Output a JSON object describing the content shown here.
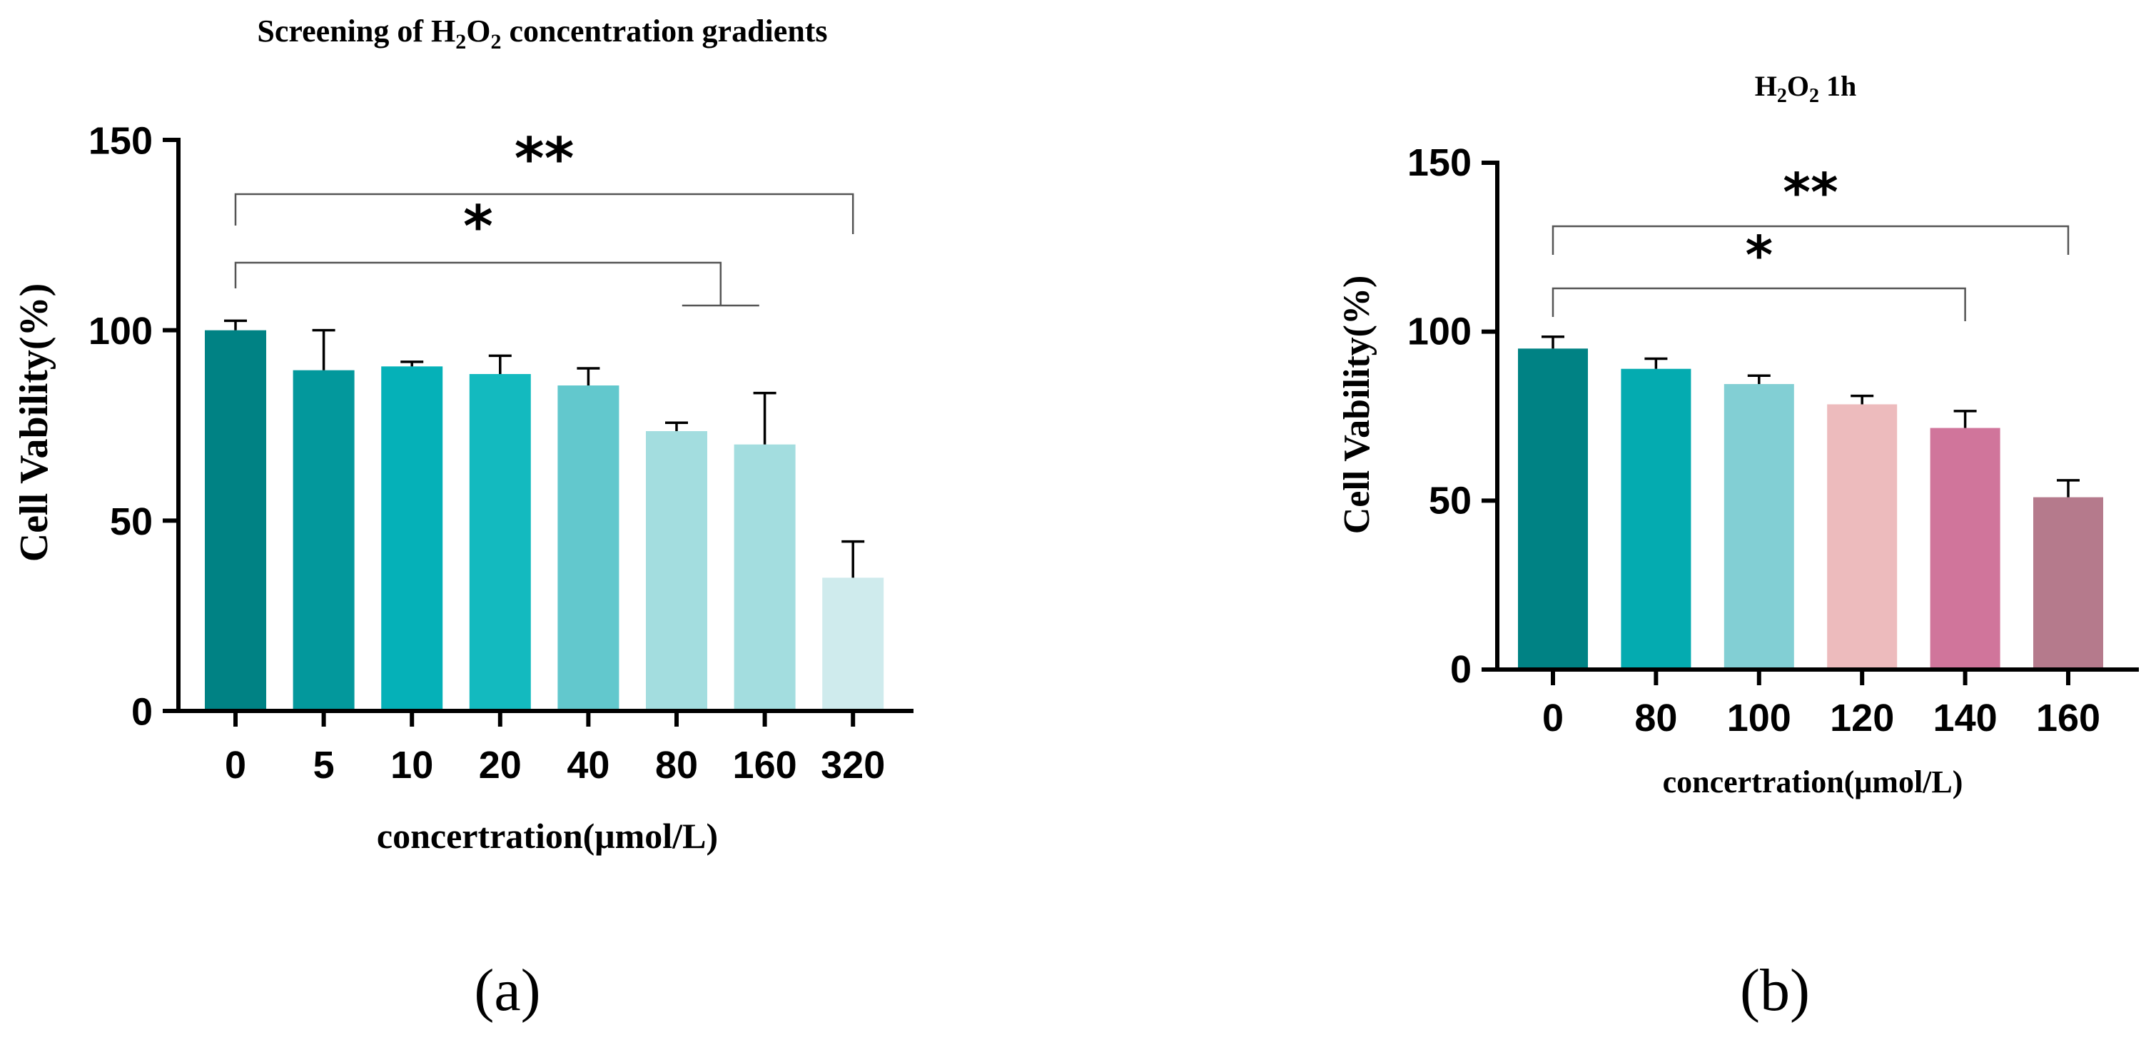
{
  "chart_data": [
    {
      "type": "bar",
      "panel": "(a)",
      "title": "Screening of H2O2 concentration gradients",
      "xlabel": "concertration(μmol/L)",
      "ylabel": "Cell Vability(%)",
      "categories": [
        "0",
        "5",
        "10",
        "20",
        "40",
        "80",
        "160",
        "320"
      ],
      "values": [
        100,
        89.5,
        90.5,
        88.5,
        85.5,
        73.5,
        70,
        35
      ],
      "errors": [
        2.5,
        10.5,
        1.2,
        4.8,
        4.5,
        2.2,
        13.5,
        9.5
      ],
      "colors": [
        "#008284",
        "#03989c",
        "#05b1b8",
        "#13babf",
        "#62c8cd",
        "#a3dddf",
        "#a3dddf",
        "#cfebed"
      ],
      "ylim": [
        0,
        150
      ],
      "yticks": [
        0,
        50,
        100,
        150
      ],
      "significance": [
        {
          "from": 0,
          "to": 7,
          "label": "**"
        },
        {
          "from": 0,
          "to": 5.5,
          "label": "*"
        }
      ]
    },
    {
      "type": "bar",
      "panel": "(b)",
      "title": "H2O2 1h",
      "xlabel": "concertration(μmol/L)",
      "ylabel": "Cell Vability(%)",
      "categories": [
        "0",
        "80",
        "100",
        "120",
        "140",
        "160"
      ],
      "values": [
        95,
        89,
        84.5,
        78.5,
        71.5,
        51
      ],
      "errors": [
        3.5,
        3,
        2.5,
        2.5,
        5,
        5
      ],
      "colors": [
        "#008284",
        "#04abb0",
        "#82cfd4",
        "#edbbbd",
        "#d0759b",
        "#b57a8c"
      ],
      "ylim": [
        0,
        150
      ],
      "yticks": [
        0,
        50,
        100,
        150
      ],
      "significance": [
        {
          "from": 0,
          "to": 5,
          "label": "**"
        },
        {
          "from": 0,
          "to": 4,
          "label": "*"
        }
      ]
    }
  ],
  "titles": {
    "a_pre": "Screening of H",
    "a_sub1": "2",
    "a_mid": "O",
    "a_sub2": "2",
    "a_post": " concentration gradients",
    "b_pre": "H",
    "b_sub1": "2",
    "b_mid": "O",
    "b_sub2": "2",
    "b_post": " 1h"
  },
  "panel_labels": {
    "a": "(a)",
    "b": "(b)"
  }
}
